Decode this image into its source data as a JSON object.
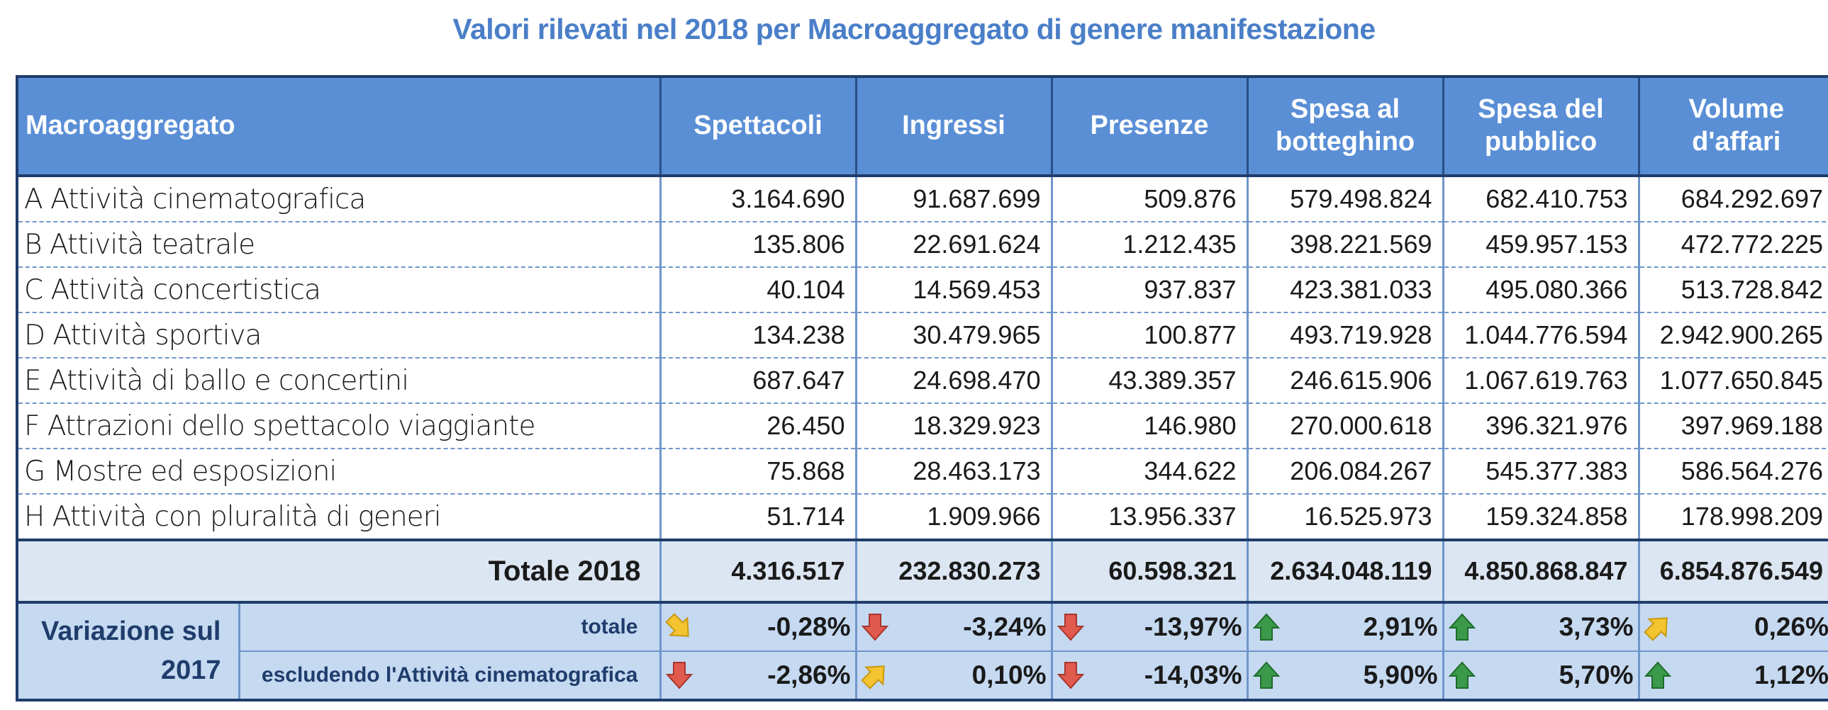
{
  "title": "Valori rilevati nel 2018 per Macroaggregato di genere manifestazione",
  "headers": [
    "Macroaggregato",
    "Spettacoli",
    "Ingressi",
    "Presenze",
    "Spesa al botteghino",
    "Spesa del pubblico",
    "Volume d'affari"
  ],
  "rows": [
    {
      "name": "A Attività cinematografica",
      "values": [
        "3.164.690",
        "91.687.699",
        "509.876",
        "579.498.824",
        "682.410.753",
        "684.292.697"
      ]
    },
    {
      "name": "B Attività teatrale",
      "values": [
        "135.806",
        "22.691.624",
        "1.212.435",
        "398.221.569",
        "459.957.153",
        "472.772.225"
      ]
    },
    {
      "name": "C Attività concertistica",
      "values": [
        "40.104",
        "14.569.453",
        "937.837",
        "423.381.033",
        "495.080.366",
        "513.728.842"
      ]
    },
    {
      "name": "D Attività sportiva",
      "values": [
        "134.238",
        "30.479.965",
        "100.877",
        "493.719.928",
        "1.044.776.594",
        "2.942.900.265"
      ]
    },
    {
      "name": "E Attività di ballo e concertini",
      "values": [
        "687.647",
        "24.698.470",
        "43.389.357",
        "246.615.906",
        "1.067.619.763",
        "1.077.650.845"
      ]
    },
    {
      "name": "F Attrazioni dello spettacolo viaggiante",
      "values": [
        "26.450",
        "18.329.923",
        "146.980",
        "270.000.618",
        "396.321.976",
        "397.969.188"
      ]
    },
    {
      "name": "G Mostre ed esposizioni",
      "values": [
        "75.868",
        "28.463.173",
        "344.622",
        "206.084.267",
        "545.377.383",
        "586.564.276"
      ]
    },
    {
      "name": "H Attività con pluralità di generi",
      "values": [
        "51.714",
        "1.909.966",
        "13.956.337",
        "16.525.973",
        "159.324.858",
        "178.998.209"
      ]
    }
  ],
  "total": {
    "label": "Totale 2018",
    "values": [
      "4.316.517",
      "232.830.273",
      "60.598.321",
      "2.634.048.119",
      "4.850.868.847",
      "6.854.876.549"
    ]
  },
  "variation": {
    "label": "Variazione sul 2017",
    "rows": [
      {
        "label": "totale",
        "cells": [
          {
            "value": "-0,28%",
            "arrow": "down-right"
          },
          {
            "value": "-3,24%",
            "arrow": "down"
          },
          {
            "value": "-13,97%",
            "arrow": "down"
          },
          {
            "value": "2,91%",
            "arrow": "up"
          },
          {
            "value": "3,73%",
            "arrow": "up"
          },
          {
            "value": "0,26%",
            "arrow": "up-right"
          }
        ]
      },
      {
        "label": "escludendo l'Attività cinematografica",
        "cells": [
          {
            "value": "-2,86%",
            "arrow": "down"
          },
          {
            "value": "0,10%",
            "arrow": "up-right"
          },
          {
            "value": "-14,03%",
            "arrow": "down"
          },
          {
            "value": "5,90%",
            "arrow": "up"
          },
          {
            "value": "5,70%",
            "arrow": "up"
          },
          {
            "value": "1,12%",
            "arrow": "up"
          }
        ]
      }
    ]
  },
  "colors": {
    "title": "#4a7fc8",
    "header_bg": "#5a8fd6",
    "total_bg": "#dce6f2",
    "variation_bg": "#c5d9f1",
    "arrow_down": "#e05a4e",
    "arrow_up": "#3a9a4a",
    "arrow_diag": "#f3c330"
  }
}
